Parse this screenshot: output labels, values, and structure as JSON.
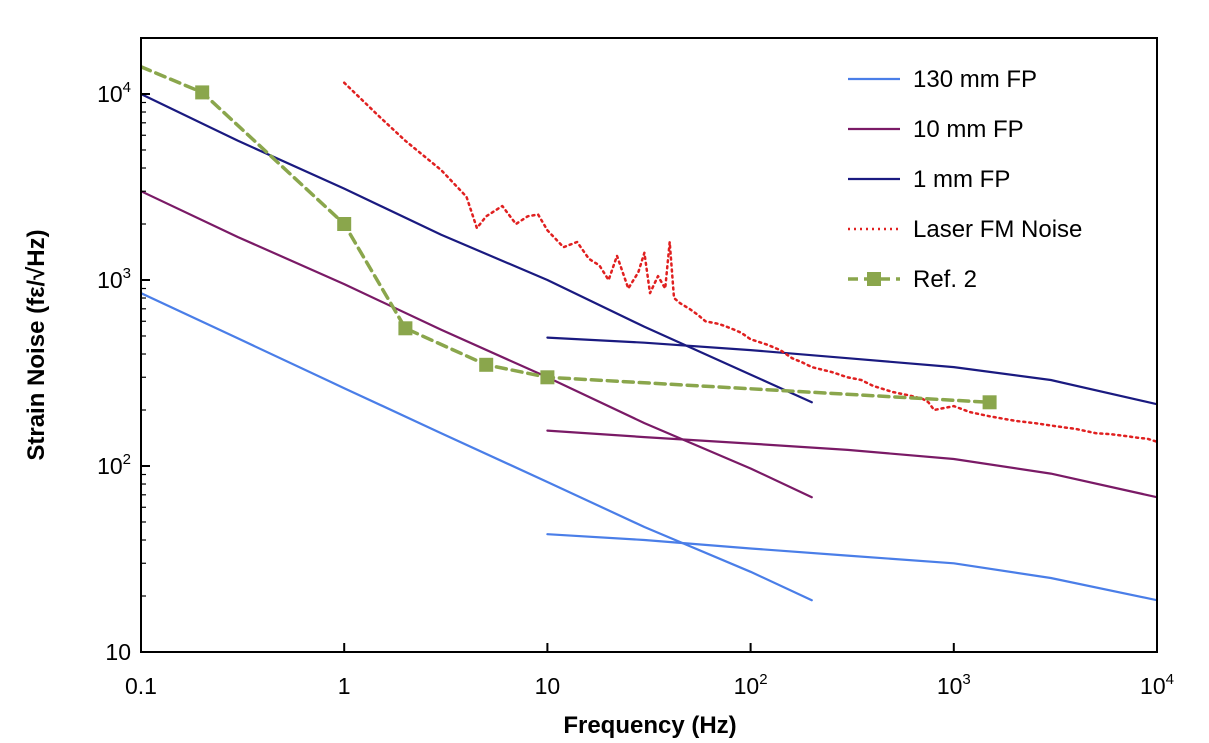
{
  "chart_data": {
    "type": "line",
    "xscale": "log",
    "yscale": "log",
    "xlim": [
      0.1,
      10000
    ],
    "ylim": [
      10,
      20000
    ],
    "xlabel": "Frequency (Hz)",
    "ylabel": "Strain Noise  (fε/√Hz)",
    "legend_position": "top-right",
    "x_ticks": [
      {
        "value": 0.1,
        "base": "0.1",
        "exp": ""
      },
      {
        "value": 1,
        "base": "1",
        "exp": ""
      },
      {
        "value": 10,
        "base": "10",
        "exp": ""
      },
      {
        "value": 100,
        "base": "10",
        "exp": "2"
      },
      {
        "value": 1000,
        "base": "10",
        "exp": "3"
      },
      {
        "value": 10000,
        "base": "10",
        "exp": "4"
      }
    ],
    "y_ticks": [
      {
        "value": 10,
        "base": "10",
        "exp": ""
      },
      {
        "value": 100,
        "base": "10",
        "exp": "2"
      },
      {
        "value": 1000,
        "base": "10",
        "exp": "3"
      },
      {
        "value": 10000,
        "base": "10",
        "exp": "4"
      }
    ],
    "series": [
      {
        "name": "130 mm FP",
        "color": "#4a7ee8",
        "style": "solid",
        "marker": "none",
        "segments": [
          {
            "x": [
              0.1,
              0.3,
              1,
              3,
              10,
              30,
              100,
              200
            ],
            "y": [
              850,
              485,
              262,
              150,
              82,
              47,
              27,
              19
            ]
          },
          {
            "x": [
              10,
              30,
              100,
              300,
              1000,
              3000,
              10000
            ],
            "y": [
              43,
              40,
              36,
              33,
              30,
              25,
              19
            ]
          }
        ]
      },
      {
        "name": "10 mm FP",
        "color": "#7a1a66",
        "style": "solid",
        "marker": "none",
        "segments": [
          {
            "x": [
              0.1,
              0.3,
              1,
              3,
              10,
              30,
              100,
              200
            ],
            "y": [
              3000,
              1700,
              950,
              540,
              300,
              170,
              97,
              68
            ]
          },
          {
            "x": [
              10,
              30,
              100,
              300,
              1000,
              3000,
              10000
            ],
            "y": [
              155,
              143,
              132,
              122,
              109,
              91,
              68
            ]
          }
        ]
      },
      {
        "name": "1 mm FP",
        "color": "#1a1a80",
        "style": "solid",
        "marker": "none",
        "segments": [
          {
            "x": [
              0.1,
              0.3,
              1,
              3,
              10,
              30,
              100,
              200
            ],
            "y": [
              10000,
              5600,
              3100,
              1750,
              1000,
              560,
              310,
              220
            ]
          },
          {
            "x": [
              10,
              30,
              100,
              300,
              1000,
              3000,
              10000
            ],
            "y": [
              490,
              460,
              420,
              380,
              340,
              290,
              215
            ]
          }
        ]
      },
      {
        "name": "Laser FM Noise",
        "color": "#e02020",
        "style": "dotted",
        "marker": "none",
        "segments": [
          {
            "x": [
              1,
              1.5,
              2,
              3,
              4,
              4.5,
              5,
              6,
              7,
              8,
              9,
              10,
              12,
              14,
              16,
              18,
              20,
              22,
              25,
              28,
              30,
              32,
              35,
              38,
              40,
              42,
              45,
              50,
              55,
              60,
              70,
              80,
              90,
              100,
              120,
              140,
              160,
              180,
              200,
              250,
              300,
              350,
              400,
              500,
              600,
              700,
              750,
              800,
              1000,
              1200,
              1500,
              2000,
              2500,
              3000,
              4000,
              5000,
              6000,
              7000,
              8000,
              9000,
              10000
            ],
            "y": [
              11500,
              7500,
              5600,
              3900,
              2800,
              1900,
              2200,
              2500,
              2000,
              2200,
              2250,
              1850,
              1500,
              1600,
              1300,
              1200,
              1000,
              1350,
              900,
              1100,
              1400,
              850,
              1050,
              900,
              1600,
              800,
              750,
              700,
              650,
              600,
              580,
              550,
              520,
              480,
              450,
              420,
              380,
              360,
              340,
              320,
              300,
              290,
              270,
              250,
              240,
              230,
              220,
              200,
              210,
              195,
              185,
              175,
              170,
              165,
              158,
              150,
              148,
              145,
              142,
              140,
              135
            ]
          }
        ]
      },
      {
        "name": "Ref. 2",
        "color": "#8aa64c",
        "style": "dashed",
        "marker": "square",
        "segments": [
          {
            "x": [
              0.1,
              0.2,
              1,
              2,
              5,
              10,
              1500
            ],
            "y": [
              14000,
              10200,
              2000,
              550,
              350,
              300,
              220
            ]
          }
        ],
        "markers_at": [
          0.2,
          1,
          2,
          5,
          10,
          1500
        ]
      }
    ]
  }
}
